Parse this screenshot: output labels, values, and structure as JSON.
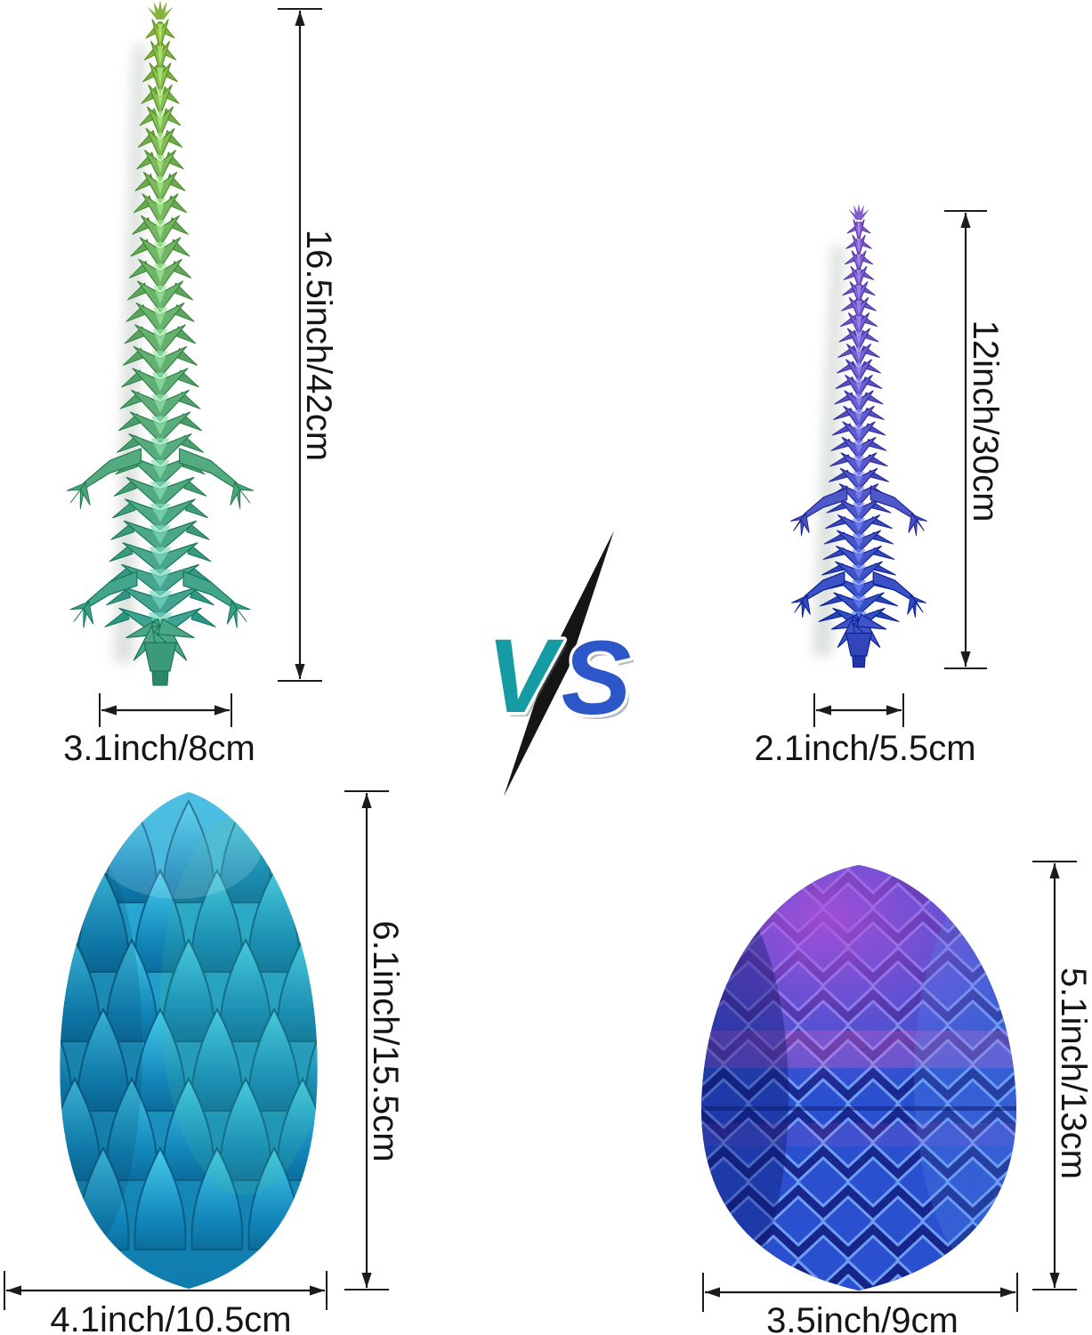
{
  "dimensions": {
    "large_dragon": {
      "height": "16.5inch/42cm",
      "width": "3.1inch/8cm"
    },
    "small_dragon": {
      "height": "12inch/30cm",
      "width": "2.1inch/5.5cm"
    },
    "large_egg": {
      "height": "6.1inch/15.5cm",
      "width": "4.1inch/10.5cm"
    },
    "small_egg": {
      "height": "5.1inch/13cm",
      "width": "3.5inch/9cm"
    }
  },
  "vs_logo": {
    "left_letter": "V",
    "right_letter": "S"
  },
  "figures": {
    "large_dragon": "green articulated dragon",
    "small_dragon": "purple articulated dragon",
    "large_egg": "teal dragon egg",
    "small_egg": "blue-purple dragon egg"
  },
  "palette": {
    "background": "#ffffff",
    "dimension_line": "#1b1b1b",
    "label_text": "#151515",
    "vs_v": "#149ba4",
    "vs_s": "#2b57c8",
    "vs_slash": "#151515",
    "dragon_large_top": "#8fc14b",
    "dragon_large_bottom": "#3fa392",
    "dragon_small_top": "#8f6ad6",
    "dragon_small_bottom": "#3350c4",
    "egg_large_main": "#2fb4dd",
    "egg_large_deep": "#0f7cad",
    "egg_large_petal_light": "#47cdee",
    "egg_large_green": "#46bd8e",
    "egg_small_blue": "#2b50cf",
    "egg_small_base": "#1c2f9e",
    "egg_small_rim": "#6f9df2",
    "egg_small_purple": "#b44fd8",
    "egg_small_pink": "#d85fc8"
  }
}
